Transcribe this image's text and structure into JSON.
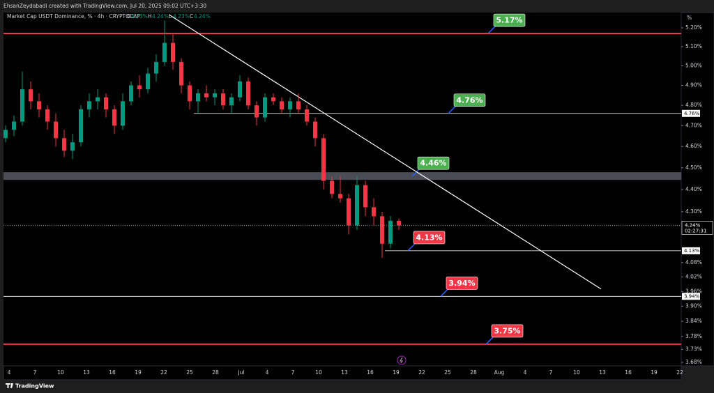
{
  "credit": "EhsanZeydabadi created with TradingView.com, Jul 20, 2025 09:02 UTC+3:30",
  "chart_data": {
    "type": "candlestick",
    "title": "Market Cap USDT Dominance, % · 4h · CRYPTOCAP",
    "ohlc_legend": [
      {
        "key": "O",
        "value": "4.23%"
      },
      {
        "key": "H",
        "value": "4.24%"
      },
      {
        "key": "L",
        "value": "4.23%"
      },
      {
        "key": "C",
        "value": "4.24%"
      }
    ],
    "unit_label": "%",
    "log_scale": true,
    "grid": false,
    "up_color": "#089981",
    "down_color": "#f23645",
    "ylim": [
      3.667,
      5.283
    ],
    "yticks": [
      {
        "value": 5.2,
        "label": "5.20%"
      },
      {
        "value": 5.1,
        "label": "5.10%"
      },
      {
        "value": 5.0,
        "label": "5.00%"
      },
      {
        "value": 4.9,
        "label": "4.90%"
      },
      {
        "value": 4.8,
        "label": "4.80%"
      },
      {
        "value": 4.7,
        "label": "4.70%"
      },
      {
        "value": 4.6,
        "label": "4.60%"
      },
      {
        "value": 4.5,
        "label": "4.50%"
      },
      {
        "value": 4.4,
        "label": "4.40%"
      },
      {
        "value": 4.3,
        "label": "4.30%"
      },
      {
        "value": 4.08,
        "label": "4.08%"
      },
      {
        "value": 4.02,
        "label": "4.02%"
      },
      {
        "value": 3.96,
        "label": "3.96%"
      },
      {
        "value": 3.9,
        "label": "3.90%"
      },
      {
        "value": 3.84,
        "label": "3.84%"
      },
      {
        "value": 3.78,
        "label": "3.78%"
      },
      {
        "value": 3.73,
        "label": "3.73%"
      },
      {
        "value": 3.68,
        "label": "3.68%"
      }
    ],
    "x_labels": [
      "4",
      "7",
      "10",
      "13",
      "16",
      "19",
      "22",
      "25",
      "28",
      "Jul",
      "4",
      "7",
      "10",
      "13",
      "16",
      "19",
      "22",
      "25",
      "28",
      "Aug",
      "4",
      "7",
      "10",
      "13",
      "16",
      "19",
      "22"
    ],
    "open": [
      4.64,
      4.68,
      4.72,
      4.88,
      4.82,
      4.78,
      4.72,
      4.64,
      4.58,
      4.62,
      4.78,
      4.82,
      4.84,
      4.78,
      4.7,
      4.82,
      4.9,
      4.88,
      4.96,
      5.02,
      5.12,
      5.02,
      4.9,
      4.82,
      4.86,
      4.84,
      4.86,
      4.8,
      4.84,
      4.92,
      4.8,
      4.74,
      4.84,
      4.82,
      4.78,
      4.82,
      4.78,
      4.72,
      4.64,
      4.44,
      4.38,
      4.36,
      4.24,
      4.42,
      4.32,
      4.28,
      4.16,
      4.26
    ],
    "high": [
      4.7,
      4.75,
      4.97,
      4.92,
      4.86,
      4.8,
      4.76,
      4.68,
      4.66,
      4.8,
      4.86,
      4.88,
      4.86,
      4.8,
      4.86,
      4.92,
      4.95,
      4.99,
      5.06,
      5.24,
      5.17,
      5.04,
      4.92,
      4.88,
      4.9,
      4.88,
      4.88,
      4.86,
      4.95,
      4.94,
      4.82,
      4.86,
      4.86,
      4.84,
      4.84,
      4.86,
      4.8,
      4.74,
      4.66,
      4.46,
      4.46,
      4.38,
      4.46,
      4.44,
      4.36,
      4.3,
      4.28,
      4.27
    ],
    "low": [
      4.62,
      4.65,
      4.7,
      4.78,
      4.74,
      4.68,
      4.6,
      4.55,
      4.54,
      4.6,
      4.74,
      4.78,
      4.74,
      4.66,
      4.68,
      4.8,
      4.84,
      4.86,
      4.92,
      5.0,
      4.98,
      4.86,
      4.78,
      4.76,
      4.82,
      4.8,
      4.78,
      4.76,
      4.82,
      4.78,
      4.7,
      4.72,
      4.8,
      4.76,
      4.74,
      4.76,
      4.7,
      4.6,
      4.4,
      4.36,
      4.34,
      4.2,
      4.22,
      4.28,
      4.24,
      4.1,
      4.14,
      4.22
    ],
    "close": [
      4.68,
      4.72,
      4.88,
      4.82,
      4.78,
      4.72,
      4.64,
      4.58,
      4.62,
      4.78,
      4.82,
      4.84,
      4.78,
      4.7,
      4.82,
      4.9,
      4.88,
      4.96,
      5.02,
      5.12,
      5.02,
      4.9,
      4.82,
      4.86,
      4.84,
      4.86,
      4.8,
      4.84,
      4.92,
      4.8,
      4.74,
      4.84,
      4.82,
      4.78,
      4.82,
      4.78,
      4.72,
      4.64,
      4.44,
      4.38,
      4.36,
      4.24,
      4.42,
      4.32,
      4.28,
      4.16,
      4.26,
      4.24
    ],
    "trendline": [
      5.27,
      3.97
    ],
    "last_price": {
      "value": 4.24,
      "label": "4.24%",
      "countdown": "02:27:31"
    },
    "levels": [
      {
        "value": 5.17,
        "label": "5.17%",
        "line_color": "#f23645",
        "label_color": "#4caf50",
        "axis_tag": false
      },
      {
        "value": 4.76,
        "label": "4.76%",
        "line_color": "#ffffff",
        "label_color": "#4caf50",
        "axis_tag": true
      },
      {
        "value": 4.46,
        "label": "4.46%",
        "line_color": "#5d606b",
        "label_color": "#4caf50",
        "axis_tag": false
      },
      {
        "value": 4.13,
        "label": "4.13%",
        "line_color": "#ffffff",
        "label_color": "#f23645",
        "axis_tag": true
      },
      {
        "value": 3.94,
        "label": "3.94%",
        "line_color": "#ffffff",
        "label_color": "#f23645",
        "axis_tag": true
      },
      {
        "value": 3.75,
        "label": "3.75%",
        "line_color": "#f23645",
        "label_color": "#f23645",
        "axis_tag": false
      }
    ]
  },
  "footer": "TradingView"
}
